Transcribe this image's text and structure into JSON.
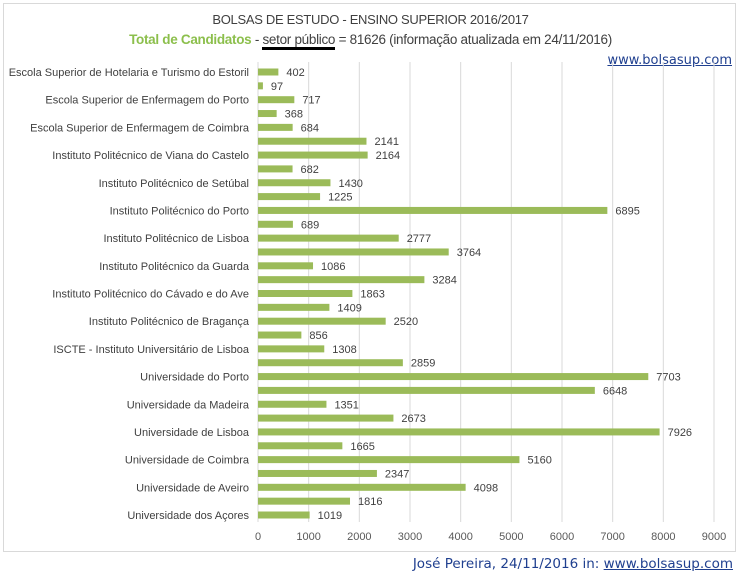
{
  "chart_data": {
    "type": "bar",
    "orientation": "horizontal",
    "title": "BOLSAS DE ESTUDO - ENSINO SUPERIOR 2016/2017",
    "subtitle": {
      "highlight": "Total de Candidatos",
      "separator": " - ",
      "underlined": "setor público",
      "rest": " = 81626  (informação atualizada em 24/11/2016)"
    },
    "categories": [
      "Escola Superior de Hotelaria e Turismo do Estoril",
      "",
      "Escola Superior de Enfermagem do Porto",
      "",
      "Escola Superior de Enfermagem de Coimbra",
      "",
      "Instituto Politécnico de Viana do Castelo",
      "",
      "Instituto Politécnico de Setúbal",
      "",
      "Instituto Politécnico do Porto",
      "",
      "Instituto Politécnico de Lisboa",
      "",
      "Instituto Politécnico da Guarda",
      "",
      "Instituto Politécnico do Cávado e do Ave",
      "",
      "Instituto Politécnico de Bragança",
      "",
      "ISCTE - Instituto Universitário de Lisboa",
      "",
      "Universidade do Porto",
      "",
      "Universidade da Madeira",
      "",
      "Universidade de Lisboa",
      "",
      "Universidade de Coimbra",
      "",
      "Universidade de Aveiro",
      "",
      "Universidade dos Açores"
    ],
    "values": [
      402,
      97,
      717,
      368,
      684,
      2141,
      2164,
      682,
      1430,
      1225,
      6895,
      689,
      2777,
      3764,
      1086,
      3284,
      1863,
      1409,
      2520,
      856,
      1308,
      2859,
      7703,
      6648,
      1351,
      2673,
      7926,
      1665,
      5160,
      2347,
      4098,
      1816,
      1019
    ],
    "xlim": [
      0,
      9000
    ],
    "xticks": [
      "0",
      "1000",
      "2000",
      "3000",
      "4000",
      "5000",
      "6000",
      "7000",
      "8000",
      "9000"
    ],
    "grid": true,
    "legend": "none",
    "bar_color": "#9bbb59",
    "data_labels": true
  },
  "site_link": "www.bolsasup.com",
  "footer": {
    "text": "José Pereira, 24/11/2016 in: ",
    "link": "www.bolsasup.com"
  }
}
